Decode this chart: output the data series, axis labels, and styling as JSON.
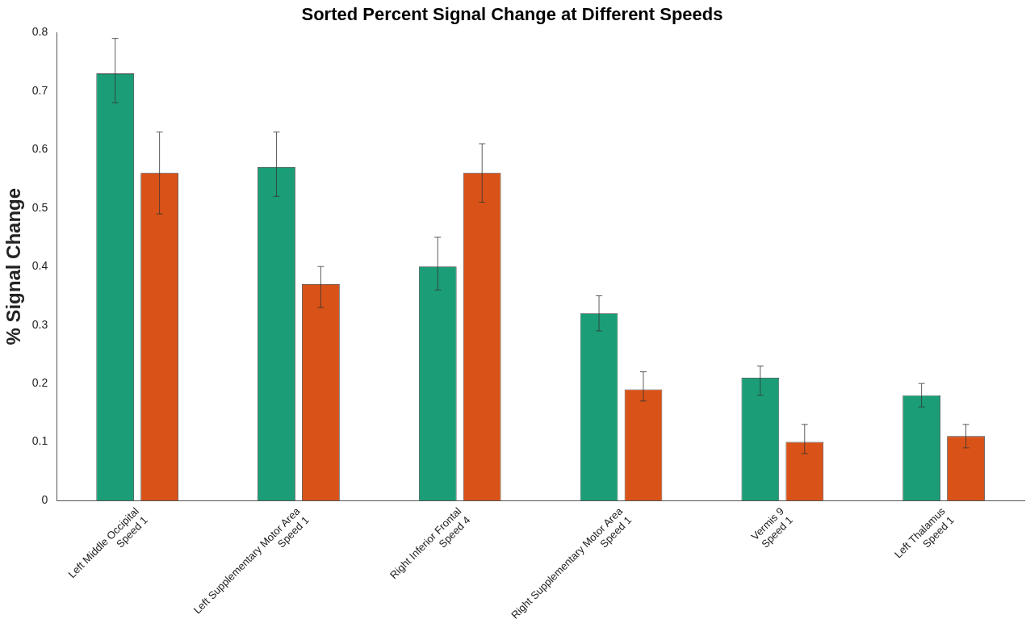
{
  "chart_data": {
    "type": "bar",
    "title": "Sorted Percent Signal Change at Different Speeds",
    "ylabel": "% Signal Change",
    "categories": [
      "Left Middle Occipital\nSpeed 1",
      "Left Supplementary Motor Area\nSpeed 1",
      "Right Inferior Frontal\nSpeed 4",
      "Right Supplementary Motor Area\nSpeed 1",
      "Vermis 9\nSpeed 1",
      "Left Thalamus\nSpeed 1"
    ],
    "series": [
      {
        "color": "#1b9e77",
        "values": [
          0.73,
          0.57,
          0.4,
          0.32,
          0.21,
          0.18
        ],
        "errors": [
          [
            0.68,
            0.79
          ],
          [
            0.52,
            0.63
          ],
          [
            0.36,
            0.45
          ],
          [
            0.29,
            0.35
          ],
          [
            0.18,
            0.23
          ],
          [
            0.16,
            0.2
          ]
        ]
      },
      {
        "color": "#d95319",
        "values": [
          0.56,
          0.37,
          0.56,
          0.19,
          0.1,
          0.11
        ],
        "errors": [
          [
            0.49,
            0.63
          ],
          [
            0.33,
            0.4
          ],
          [
            0.51,
            0.61
          ],
          [
            0.17,
            0.22
          ],
          [
            0.08,
            0.13
          ],
          [
            0.09,
            0.13
          ]
        ]
      }
    ],
    "ylim": [
      0,
      0.8
    ],
    "yticks": [
      0,
      0.1,
      0.2,
      0.3,
      0.4,
      0.5,
      0.6,
      0.7,
      0.8
    ],
    "grid": false,
    "legend": false
  }
}
